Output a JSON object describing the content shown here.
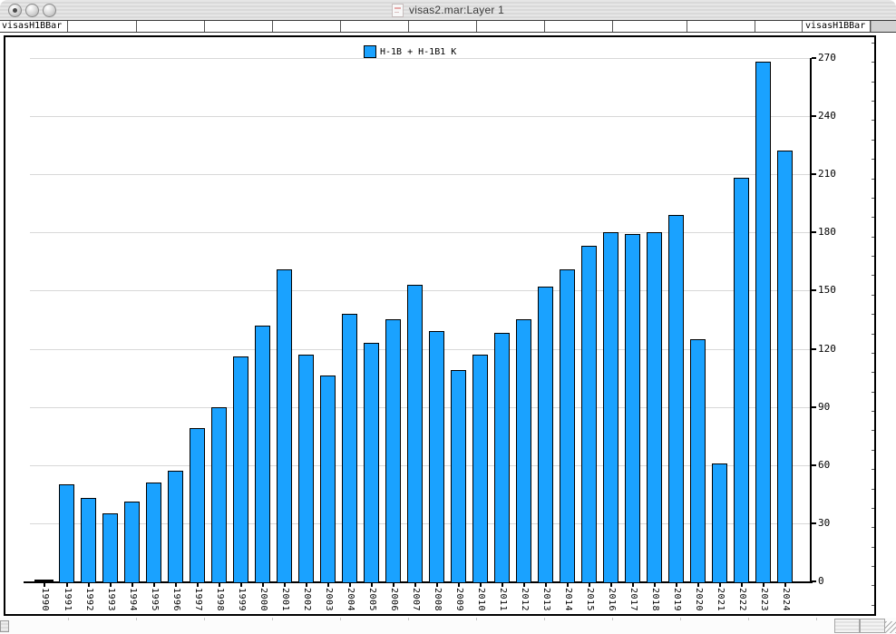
{
  "window": {
    "title": "visas2.mar:Layer 1",
    "buttons": [
      {
        "name": "close",
        "modified_dot": true
      },
      {
        "name": "minimize",
        "modified_dot": false
      },
      {
        "name": "zoom",
        "modified_dot": false
      }
    ]
  },
  "tab_bar": {
    "left_tab": "visasH1BBar",
    "right_tab": "visasH1BBar"
  },
  "chart_data": {
    "type": "bar",
    "title": "",
    "xlabel": "",
    "ylabel": "",
    "legend": [
      {
        "label": "H-1B + H-1B1 K",
        "color": "#1AA2FF"
      }
    ],
    "legend_position": "top-center",
    "categories": [
      "1990",
      "1991",
      "1992",
      "1993",
      "1994",
      "1995",
      "1996",
      "1997",
      "1998",
      "1999",
      "2000",
      "2001",
      "2002",
      "2003",
      "2004",
      "2005",
      "2006",
      "2007",
      "2008",
      "2009",
      "2010",
      "2011",
      "2012",
      "2013",
      "2014",
      "2015",
      "2016",
      "2017",
      "2018",
      "2019",
      "2020",
      "2021",
      "2022",
      "2023",
      "2024"
    ],
    "values": [
      2,
      51,
      44,
      36,
      42,
      52,
      58,
      80,
      91,
      117,
      133,
      162,
      118,
      107,
      139,
      124,
      136,
      154,
      130,
      110,
      118,
      129,
      136,
      153,
      162,
      174,
      181,
      180,
      181,
      190,
      126,
      62,
      209,
      269,
      223
    ],
    "bar_color": "#1AA2FF",
    "bar_color_overrides": {
      "1990": "#000000"
    },
    "ylim": [
      0,
      270
    ],
    "ytick_step": 30,
    "yaxis_side": "right",
    "grid": true,
    "grid_color": "#d8d8d8"
  }
}
